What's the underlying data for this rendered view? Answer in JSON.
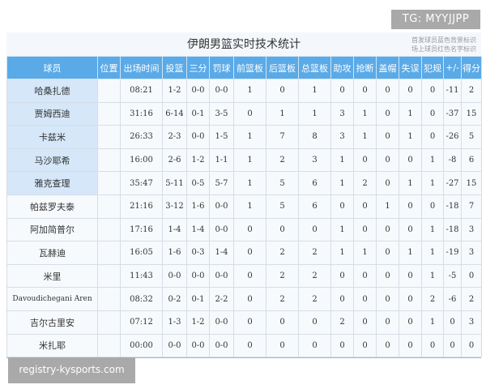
{
  "watermark_top": "TG: MYYJJPP",
  "watermark_bottom": "registry-kysports.com",
  "title": "伊朗男篮实时技术统计",
  "legend": [
    "首发球员蓝色背景标识",
    "场上球员红色名字标识"
  ],
  "columns": [
    "球员",
    "位置",
    "出场时间",
    "投篮",
    "三分",
    "罚球",
    "前篮板",
    "后篮板",
    "总篮板",
    "助攻",
    "抢断",
    "盖帽",
    "失误",
    "犯规",
    "+/-",
    "得分"
  ],
  "rows": [
    {
      "starter": true,
      "cells": [
        "哈桑扎德",
        "",
        "08:21",
        "1-2",
        "0-0",
        "0-0",
        "1",
        "0",
        "1",
        "0",
        "0",
        "0",
        "0",
        "0",
        "-11",
        "2"
      ]
    },
    {
      "starter": true,
      "cells": [
        "贾姆西迪",
        "",
        "31:16",
        "6-14",
        "0-1",
        "3-5",
        "0",
        "1",
        "1",
        "3",
        "1",
        "0",
        "1",
        "0",
        "-37",
        "15"
      ]
    },
    {
      "starter": true,
      "cells": [
        "卡兹米",
        "",
        "26:33",
        "2-3",
        "0-0",
        "1-5",
        "1",
        "7",
        "8",
        "3",
        "1",
        "0",
        "1",
        "0",
        "-26",
        "5"
      ]
    },
    {
      "starter": true,
      "cells": [
        "马沙耶希",
        "",
        "16:00",
        "2-6",
        "1-2",
        "1-1",
        "1",
        "2",
        "3",
        "1",
        "0",
        "0",
        "0",
        "1",
        "-8",
        "6"
      ]
    },
    {
      "starter": true,
      "cells": [
        "雅克查理",
        "",
        "35:47",
        "5-11",
        "0-5",
        "5-7",
        "1",
        "5",
        "6",
        "1",
        "2",
        "0",
        "1",
        "1",
        "-27",
        "15"
      ]
    },
    {
      "starter": false,
      "cells": [
        "帕兹罗夫泰",
        "",
        "21:16",
        "3-12",
        "1-6",
        "0-0",
        "1",
        "5",
        "6",
        "0",
        "0",
        "1",
        "0",
        "0",
        "-18",
        "7"
      ]
    },
    {
      "starter": false,
      "cells": [
        "阿加简普尔",
        "",
        "17:16",
        "1-4",
        "1-4",
        "0-0",
        "0",
        "0",
        "0",
        "1",
        "0",
        "0",
        "0",
        "1",
        "-18",
        "3"
      ]
    },
    {
      "starter": false,
      "cells": [
        "瓦赫迪",
        "",
        "16:05",
        "1-6",
        "0-3",
        "1-4",
        "0",
        "2",
        "2",
        "1",
        "1",
        "0",
        "1",
        "1",
        "-19",
        "3"
      ]
    },
    {
      "starter": false,
      "cells": [
        "米里",
        "",
        "11:43",
        "0-0",
        "0-0",
        "0-0",
        "0",
        "2",
        "2",
        "0",
        "0",
        "0",
        "0",
        "1",
        "-5",
        "0"
      ]
    },
    {
      "starter": false,
      "cells": [
        "Davoudichegani Aren",
        "",
        "08:32",
        "0-2",
        "0-1",
        "2-2",
        "0",
        "2",
        "2",
        "0",
        "0",
        "0",
        "0",
        "2",
        "-6",
        "2"
      ]
    },
    {
      "starter": false,
      "cells": [
        "吉尔古里安",
        "",
        "07:12",
        "1-3",
        "1-2",
        "0-0",
        "0",
        "0",
        "0",
        "2",
        "0",
        "0",
        "0",
        "1",
        "0",
        "3"
      ]
    },
    {
      "starter": false,
      "cells": [
        "米扎耶",
        "",
        "00:00",
        "0-0",
        "0-0",
        "0-0",
        "0",
        "0",
        "0",
        "0",
        "0",
        "0",
        "0",
        "0",
        "0",
        "0"
      ]
    }
  ],
  "colors": {
    "header": "#5aaae8",
    "starter_bg": "#d5e7f8"
  }
}
